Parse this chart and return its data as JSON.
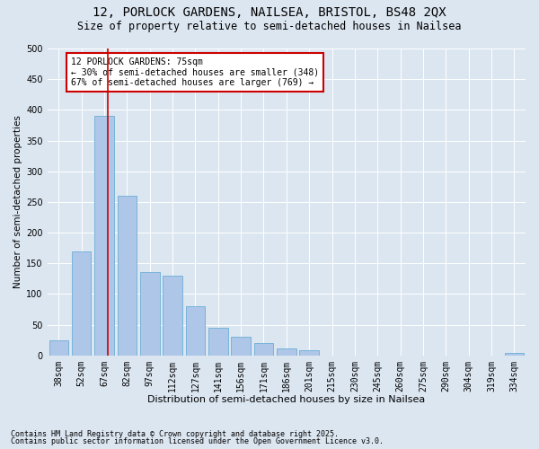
{
  "title1": "12, PORLOCK GARDENS, NAILSEA, BRISTOL, BS48 2QX",
  "title2": "Size of property relative to semi-detached houses in Nailsea",
  "xlabel": "Distribution of semi-detached houses by size in Nailsea",
  "ylabel": "Number of semi-detached properties",
  "categories": [
    "38sqm",
    "52sqm",
    "67sqm",
    "82sqm",
    "97sqm",
    "112sqm",
    "127sqm",
    "141sqm",
    "156sqm",
    "171sqm",
    "186sqm",
    "201sqm",
    "215sqm",
    "230sqm",
    "245sqm",
    "260sqm",
    "275sqm",
    "290sqm",
    "304sqm",
    "319sqm",
    "334sqm"
  ],
  "values": [
    25,
    170,
    390,
    260,
    135,
    130,
    80,
    45,
    30,
    20,
    12,
    8,
    0,
    0,
    0,
    0,
    0,
    0,
    0,
    0,
    4
  ],
  "bar_color": "#aec6e8",
  "bar_edge_color": "#6baed6",
  "vline_x_index": 2,
  "vline_color": "#cc0000",
  "property_size": "75sqm",
  "pct_smaller": 30,
  "pct_larger": 67,
  "n_smaller": 348,
  "n_larger": 769,
  "annotation_box_color": "#ffffff",
  "annotation_box_edge": "#cc0000",
  "bg_color": "#dce6f1",
  "plot_bg_color": "#dce6f1",
  "footer1": "Contains HM Land Registry data © Crown copyright and database right 2025.",
  "footer2": "Contains public sector information licensed under the Open Government Licence v3.0.",
  "ylim": [
    0,
    500
  ],
  "yticks": [
    0,
    50,
    100,
    150,
    200,
    250,
    300,
    350,
    400,
    450,
    500
  ],
  "title1_fontsize": 10,
  "title2_fontsize": 8.5,
  "xlabel_fontsize": 8,
  "ylabel_fontsize": 7.5,
  "tick_fontsize": 7,
  "annotation_fontsize": 7,
  "footer_fontsize": 6
}
